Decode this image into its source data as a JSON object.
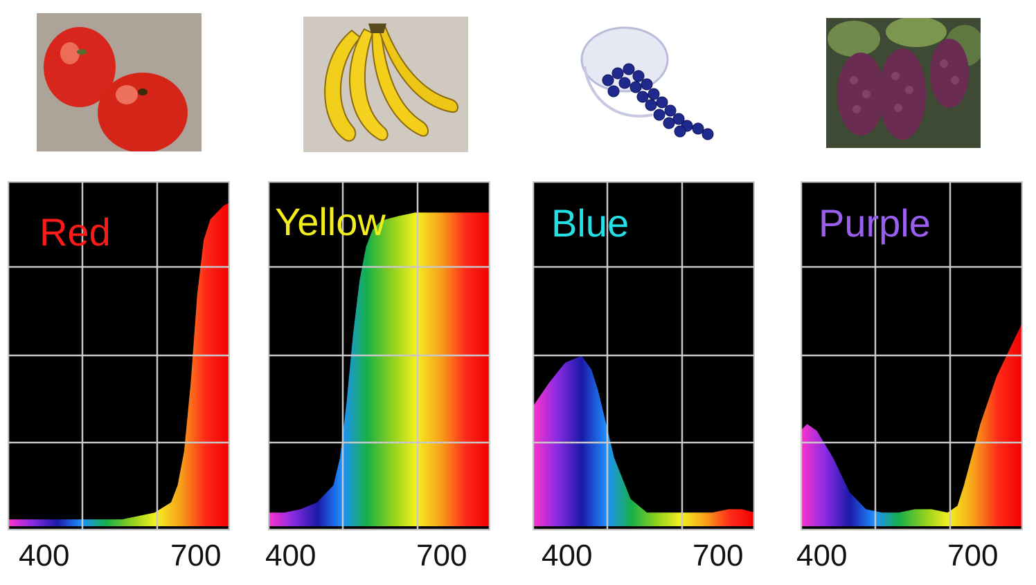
{
  "photos": [
    {
      "subject": "tomatoes",
      "icon": "tomato-photo"
    },
    {
      "subject": "bananas",
      "icon": "banana-photo"
    },
    {
      "subject": "blueberries",
      "icon": "blueberry-bowl-photo"
    },
    {
      "subject": "grapes",
      "icon": "grape-photo"
    }
  ],
  "colors": {
    "grid": "#c8c8c8",
    "background": "#000000",
    "spectrum": [
      "#ff33cc",
      "#8a2be2",
      "#1a1aa8",
      "#1e90ff",
      "#16b04a",
      "#8ccf1e",
      "#f4f020",
      "#f7a11a",
      "#ff2a1a",
      "#f00000"
    ]
  },
  "chart_data": [
    {
      "type": "area",
      "title": "Red",
      "title_color": "#ff1a1a",
      "x_ticks": [
        "400",
        "700"
      ],
      "x": [
        400,
        425,
        450,
        475,
        500,
        525,
        550,
        575,
        600,
        625,
        650,
        660,
        670,
        680,
        690,
        700,
        710,
        720,
        730,
        740
      ],
      "y": [
        0.02,
        0.02,
        0.02,
        0.02,
        0.02,
        0.02,
        0.02,
        0.02,
        0.03,
        0.04,
        0.07,
        0.12,
        0.22,
        0.42,
        0.68,
        0.84,
        0.9,
        0.92,
        0.94,
        0.95
      ],
      "xlim": [
        400,
        740
      ],
      "ylim": [
        0,
        1
      ],
      "grid": true
    },
    {
      "type": "area",
      "title": "Yellow",
      "title_color": "#f2ee1e",
      "x_ticks": [
        "400",
        "700"
      ],
      "x": [
        400,
        425,
        450,
        475,
        500,
        510,
        520,
        530,
        540,
        550,
        560,
        570,
        580,
        600,
        625,
        650,
        675,
        700,
        720,
        740
      ],
      "y": [
        0.04,
        0.04,
        0.05,
        0.07,
        0.12,
        0.2,
        0.36,
        0.56,
        0.72,
        0.82,
        0.87,
        0.89,
        0.9,
        0.91,
        0.92,
        0.92,
        0.92,
        0.92,
        0.92,
        0.92
      ],
      "xlim": [
        400,
        740
      ],
      "ylim": [
        0,
        1
      ],
      "grid": true
    },
    {
      "type": "area",
      "title": "Blue",
      "title_color": "#22e0e6",
      "x_ticks": [
        "400",
        "700"
      ],
      "x": [
        400,
        425,
        450,
        475,
        490,
        500,
        510,
        525,
        550,
        575,
        600,
        625,
        650,
        675,
        700,
        720,
        740
      ],
      "y": [
        0.35,
        0.42,
        0.48,
        0.5,
        0.46,
        0.4,
        0.32,
        0.2,
        0.08,
        0.04,
        0.04,
        0.04,
        0.04,
        0.04,
        0.05,
        0.05,
        0.04
      ],
      "xlim": [
        400,
        740
      ],
      "ylim": [
        0,
        1
      ],
      "grid": true
    },
    {
      "type": "area",
      "title": "Purple",
      "title_color": "#9b5ff0",
      "x_ticks": [
        "400",
        "700"
      ],
      "x": [
        400,
        410,
        425,
        450,
        475,
        500,
        525,
        550,
        575,
        600,
        625,
        640,
        650,
        675,
        700,
        720,
        740
      ],
      "y": [
        0.28,
        0.3,
        0.28,
        0.2,
        0.1,
        0.05,
        0.04,
        0.04,
        0.05,
        0.05,
        0.04,
        0.06,
        0.12,
        0.3,
        0.44,
        0.52,
        0.6
      ],
      "xlim": [
        400,
        740
      ],
      "ylim": [
        0,
        1
      ],
      "grid": true
    }
  ]
}
